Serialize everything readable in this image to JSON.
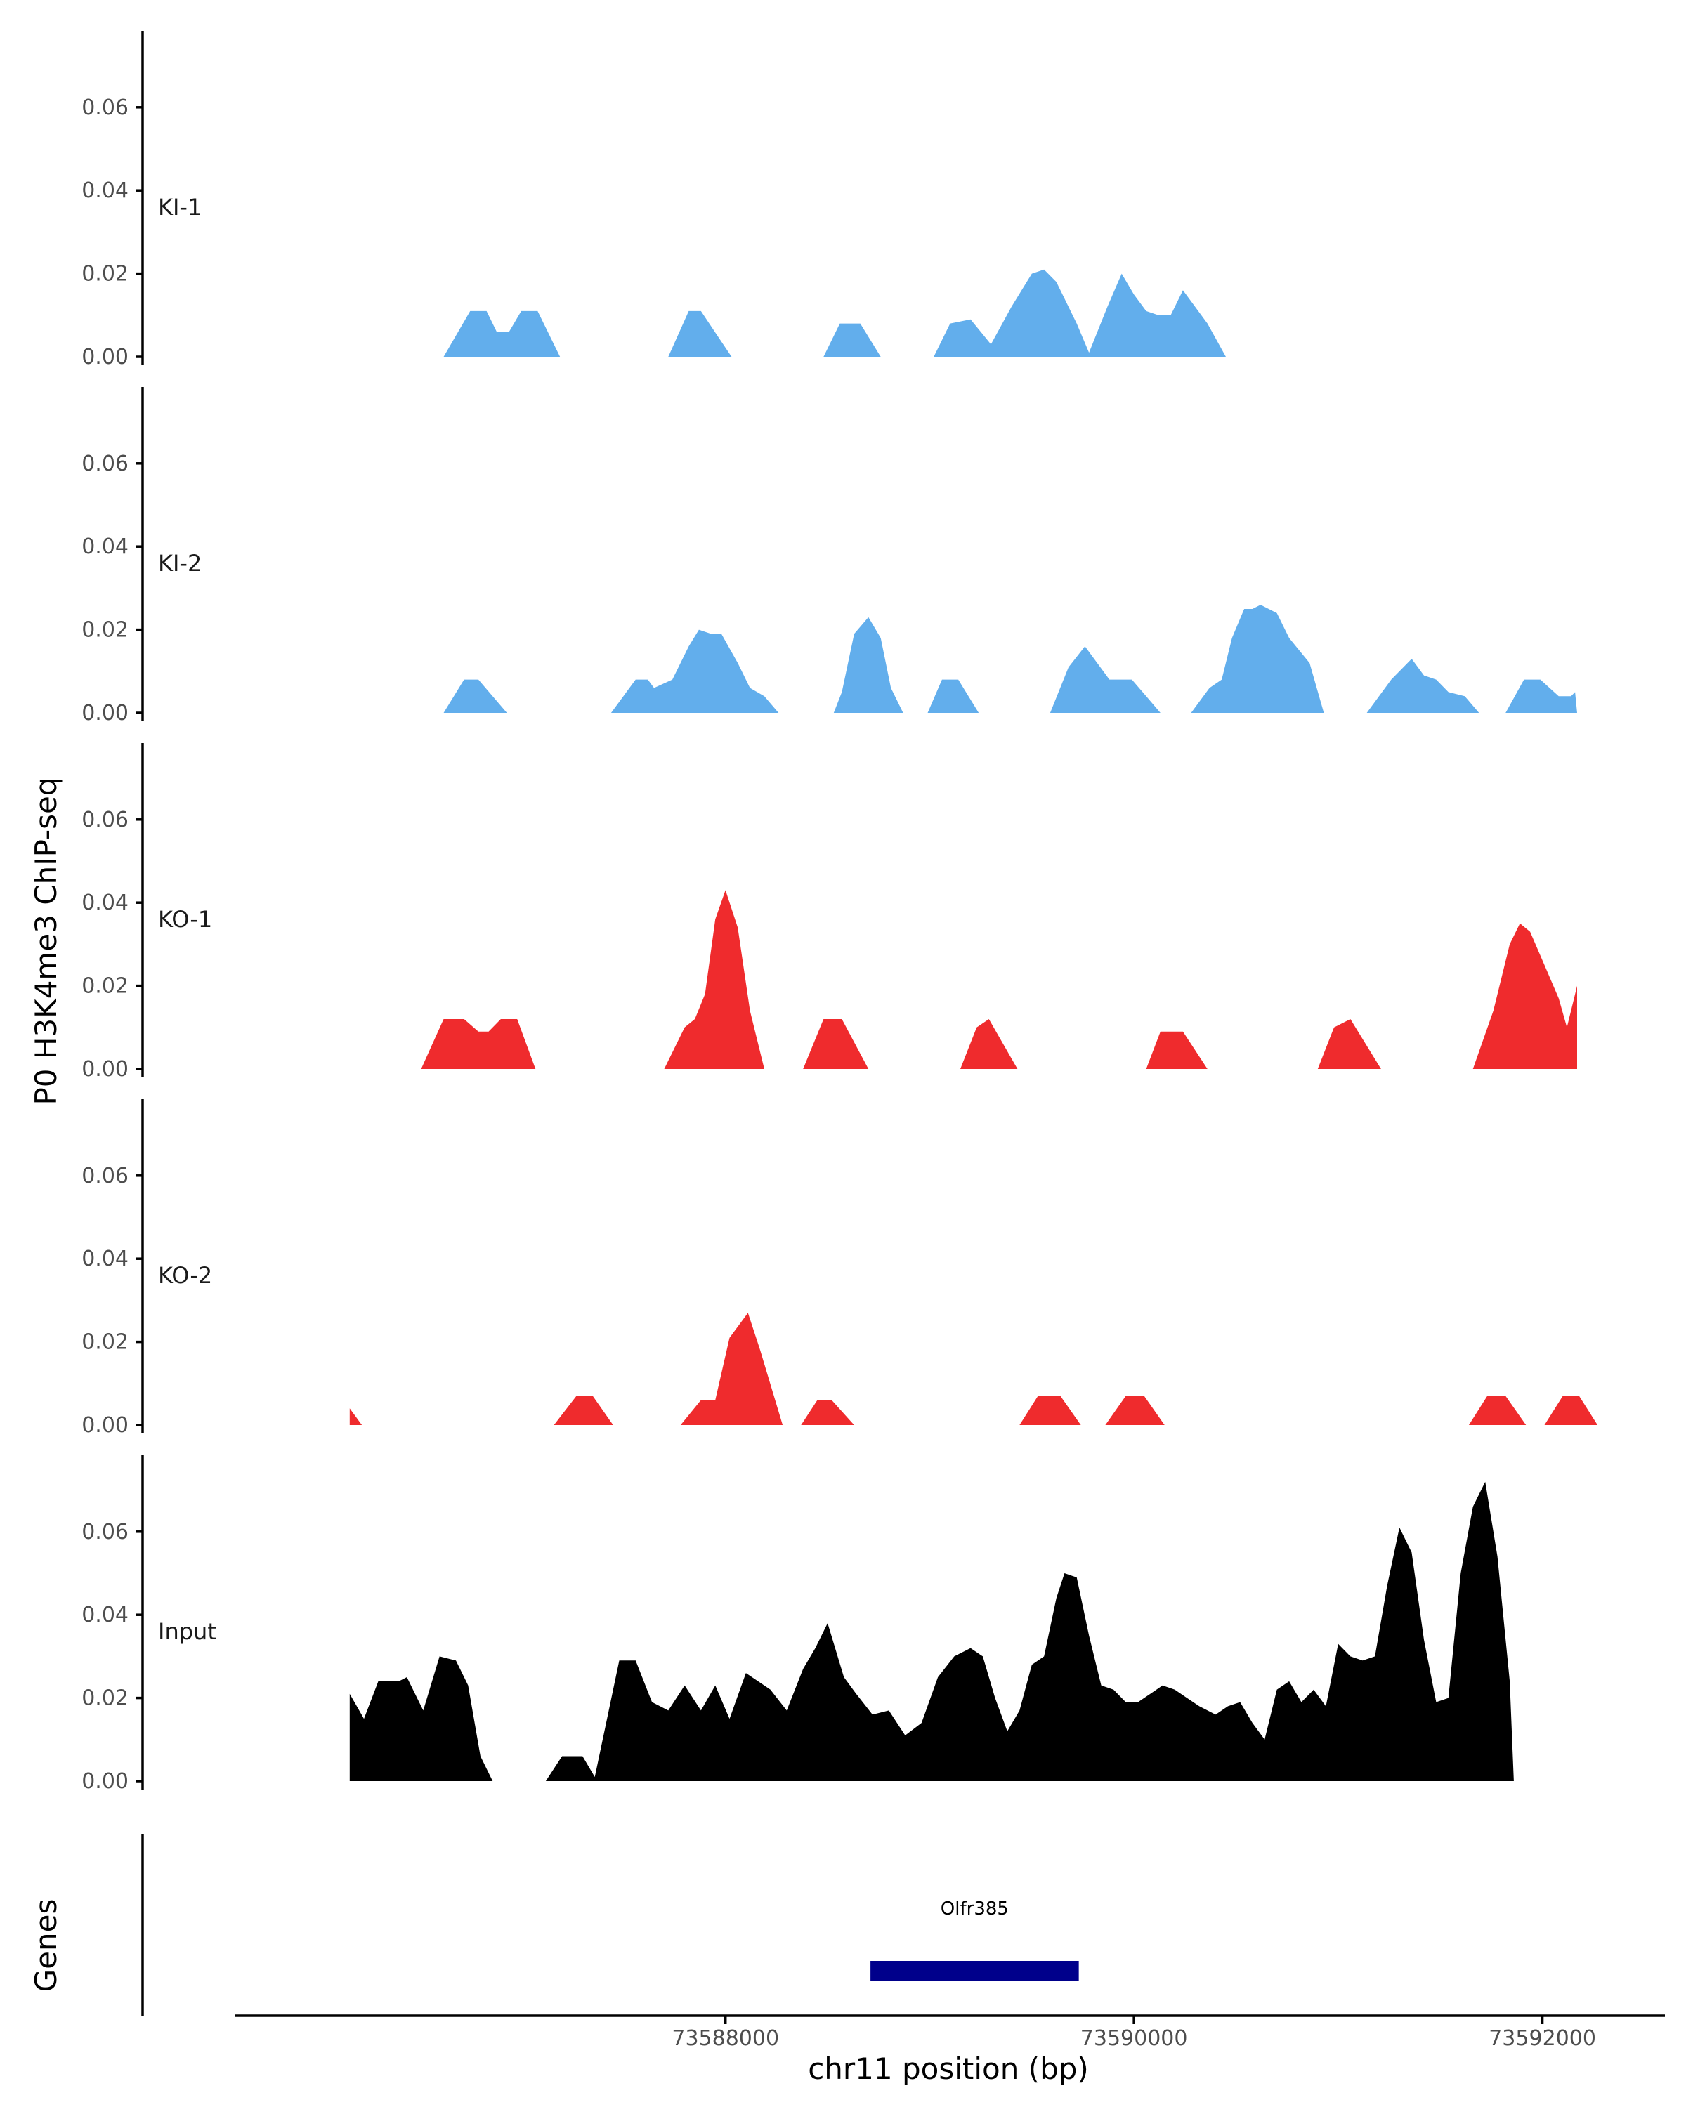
{
  "chart_data": {
    "type": "area",
    "ylabel": "P0 H3K4me3 ChIP-seq",
    "xlabel": "chr11 position (bp)",
    "genes_label": "Genes",
    "ylim": [
      0,
      0.075
    ],
    "xlim": [
      73585600,
      73592600
    ],
    "yticks": [
      "0.00",
      "0.02",
      "0.04",
      "0.06"
    ],
    "xticks": [
      {
        "value": 73588000,
        "label": "73588000"
      },
      {
        "value": 73590000,
        "label": "73590000"
      },
      {
        "value": 73592000,
        "label": "73592000"
      }
    ],
    "series": [
      {
        "name": "KI-1",
        "color": "#62aeec",
        "points": [
          [
            73586620,
            0
          ],
          [
            73586750,
            0.011
          ],
          [
            73586830,
            0.011
          ],
          [
            73586880,
            0.006
          ],
          [
            73586940,
            0.006
          ],
          [
            73587000,
            0.011
          ],
          [
            73587080,
            0.011
          ],
          [
            73587190,
            0
          ],
          [
            73587720,
            0
          ],
          [
            73587820,
            0.011
          ],
          [
            73587880,
            0.011
          ],
          [
            73588030,
            0
          ],
          [
            73588480,
            0
          ],
          [
            73588560,
            0.008
          ],
          [
            73588660,
            0.008
          ],
          [
            73588760,
            0
          ],
          [
            73589020,
            0
          ],
          [
            73589100,
            0.008
          ],
          [
            73589200,
            0.009
          ],
          [
            73589300,
            0.003
          ],
          [
            73589400,
            0.012
          ],
          [
            73589500,
            0.02
          ],
          [
            73589560,
            0.021
          ],
          [
            73589620,
            0.018
          ],
          [
            73589720,
            0.008
          ],
          [
            73589780,
            0.001
          ],
          [
            73589870,
            0.012
          ],
          [
            73589940,
            0.02
          ],
          [
            73590000,
            0.015
          ],
          [
            73590060,
            0.011
          ],
          [
            73590120,
            0.01
          ],
          [
            73590180,
            0.01
          ],
          [
            73590240,
            0.016
          ],
          [
            73590300,
            0.012
          ],
          [
            73590360,
            0.008
          ],
          [
            73590450,
            0
          ],
          [
            73590460,
            0
          ]
        ]
      },
      {
        "name": "KI-2",
        "color": "#62aeec",
        "points": [
          [
            73586620,
            0
          ],
          [
            73586720,
            0.008
          ],
          [
            73586790,
            0.008
          ],
          [
            73586930,
            0
          ],
          [
            73587440,
            0
          ],
          [
            73587560,
            0.008
          ],
          [
            73587620,
            0.008
          ],
          [
            73587650,
            0.006
          ],
          [
            73587740,
            0.008
          ],
          [
            73587820,
            0.016
          ],
          [
            73587870,
            0.02
          ],
          [
            73587930,
            0.019
          ],
          [
            73587980,
            0.019
          ],
          [
            73588060,
            0.012
          ],
          [
            73588120,
            0.006
          ],
          [
            73588190,
            0.004
          ],
          [
            73588260,
            0
          ],
          [
            73588530,
            0
          ],
          [
            73588570,
            0.005
          ],
          [
            73588630,
            0.019
          ],
          [
            73588700,
            0.023
          ],
          [
            73588760,
            0.018
          ],
          [
            73588810,
            0.006
          ],
          [
            73588870,
            0
          ],
          [
            73588990,
            0
          ],
          [
            73589060,
            0.008
          ],
          [
            73589140,
            0.008
          ],
          [
            73589240,
            0
          ],
          [
            73589590,
            0
          ],
          [
            73589680,
            0.011
          ],
          [
            73589760,
            0.016
          ],
          [
            73589880,
            0.008
          ],
          [
            73589990,
            0.008
          ],
          [
            73590060,
            0.004
          ],
          [
            73590130,
            0
          ],
          [
            73590280,
            0
          ],
          [
            73590370,
            0.006
          ],
          [
            73590430,
            0.008
          ],
          [
            73590480,
            0.018
          ],
          [
            73590540,
            0.025
          ],
          [
            73590580,
            0.025
          ],
          [
            73590620,
            0.026
          ],
          [
            73590700,
            0.024
          ],
          [
            73590760,
            0.018
          ],
          [
            73590860,
            0.012
          ],
          [
            73590930,
            0
          ],
          [
            73591140,
            0
          ],
          [
            73591260,
            0.008
          ],
          [
            73591360,
            0.013
          ],
          [
            73591420,
            0.009
          ],
          [
            73591480,
            0.008
          ],
          [
            73591540,
            0.005
          ],
          [
            73591620,
            0.004
          ],
          [
            73591690,
            0
          ],
          [
            73591820,
            0
          ],
          [
            73591910,
            0.008
          ],
          [
            73591990,
            0.008
          ],
          [
            73592080,
            0.004
          ],
          [
            73592140,
            0.004
          ],
          [
            73592160,
            0.005
          ],
          [
            73592170,
            0
          ]
        ]
      },
      {
        "name": "KO-1",
        "color": "#ef2b2d",
        "points": [
          [
            73586510,
            0
          ],
          [
            73586620,
            0.012
          ],
          [
            73586720,
            0.012
          ],
          [
            73586790,
            0.009
          ],
          [
            73586840,
            0.009
          ],
          [
            73586900,
            0.012
          ],
          [
            73586980,
            0.012
          ],
          [
            73587070,
            0
          ],
          [
            73587700,
            0
          ],
          [
            73587800,
            0.01
          ],
          [
            73587850,
            0.012
          ],
          [
            73587900,
            0.018
          ],
          [
            73587950,
            0.036
          ],
          [
            73588000,
            0.043
          ],
          [
            73588060,
            0.034
          ],
          [
            73588120,
            0.014
          ],
          [
            73588190,
            0
          ],
          [
            73588380,
            0
          ],
          [
            73588480,
            0.012
          ],
          [
            73588570,
            0.012
          ],
          [
            73588700,
            0
          ],
          [
            73589150,
            0
          ],
          [
            73589230,
            0.01
          ],
          [
            73589290,
            0.012
          ],
          [
            73589430,
            0
          ],
          [
            73590060,
            0
          ],
          [
            73590130,
            0.009
          ],
          [
            73590240,
            0.009
          ],
          [
            73590360,
            0
          ],
          [
            73590900,
            0
          ],
          [
            73590980,
            0.01
          ],
          [
            73591060,
            0.012
          ],
          [
            73591210,
            0
          ],
          [
            73591660,
            0
          ],
          [
            73591760,
            0.014
          ],
          [
            73591840,
            0.03
          ],
          [
            73591890,
            0.035
          ],
          [
            73591940,
            0.033
          ],
          [
            73592010,
            0.025
          ],
          [
            73592080,
            0.017
          ],
          [
            73592120,
            0.01
          ],
          [
            73592170,
            0.02
          ],
          [
            73592170,
            0
          ]
        ]
      },
      {
        "name": "KO-2",
        "color": "#ef2b2d",
        "points": [
          [
            73586160,
            0.004
          ],
          [
            73586220,
            0
          ],
          [
            73587160,
            0
          ],
          [
            73587270,
            0.007
          ],
          [
            73587350,
            0.007
          ],
          [
            73587450,
            0
          ],
          [
            73587780,
            0
          ],
          [
            73587880,
            0.006
          ],
          [
            73587950,
            0.006
          ],
          [
            73588020,
            0.021
          ],
          [
            73588110,
            0.027
          ],
          [
            73588170,
            0.018
          ],
          [
            73588280,
            0
          ],
          [
            73588370,
            0
          ],
          [
            73588450,
            0.006
          ],
          [
            73588520,
            0.006
          ],
          [
            73588630,
            0
          ],
          [
            73589440,
            0
          ],
          [
            73589530,
            0.007
          ],
          [
            73589640,
            0.007
          ],
          [
            73589740,
            0
          ],
          [
            73589860,
            0
          ],
          [
            73589960,
            0.007
          ],
          [
            73590050,
            0.007
          ],
          [
            73590150,
            0
          ],
          [
            73591640,
            0
          ],
          [
            73591730,
            0.007
          ],
          [
            73591820,
            0.007
          ],
          [
            73591920,
            0
          ],
          [
            73592010,
            0
          ],
          [
            73592100,
            0.007
          ],
          [
            73592180,
            0.007
          ],
          [
            73592270,
            0
          ]
        ]
      },
      {
        "name": "Input",
        "color": "#000000",
        "points": [
          [
            73586160,
            0
          ],
          [
            73586160,
            0.021
          ],
          [
            73586230,
            0.015
          ],
          [
            73586300,
            0.024
          ],
          [
            73586400,
            0.024
          ],
          [
            73586440,
            0.025
          ],
          [
            73586520,
            0.017
          ],
          [
            73586600,
            0.03
          ],
          [
            73586680,
            0.029
          ],
          [
            73586740,
            0.023
          ],
          [
            73586800,
            0.006
          ],
          [
            73586860,
            0
          ],
          [
            73587120,
            0
          ],
          [
            73587200,
            0.006
          ],
          [
            73587300,
            0.006
          ],
          [
            73587360,
            0.001
          ],
          [
            73587420,
            0.015
          ],
          [
            73587480,
            0.029
          ],
          [
            73587560,
            0.029
          ],
          [
            73587640,
            0.019
          ],
          [
            73587720,
            0.017
          ],
          [
            73587800,
            0.023
          ],
          [
            73587880,
            0.017
          ],
          [
            73587950,
            0.023
          ],
          [
            73588020,
            0.015
          ],
          [
            73588100,
            0.026
          ],
          [
            73588160,
            0.024
          ],
          [
            73588220,
            0.022
          ],
          [
            73588300,
            0.017
          ],
          [
            73588380,
            0.027
          ],
          [
            73588440,
            0.032
          ],
          [
            73588500,
            0.038
          ],
          [
            73588580,
            0.025
          ],
          [
            73588640,
            0.021
          ],
          [
            73588720,
            0.016
          ],
          [
            73588800,
            0.017
          ],
          [
            73588880,
            0.011
          ],
          [
            73588960,
            0.014
          ],
          [
            73589040,
            0.025
          ],
          [
            73589120,
            0.03
          ],
          [
            73589200,
            0.032
          ],
          [
            73589260,
            0.03
          ],
          [
            73589320,
            0.02
          ],
          [
            73589380,
            0.012
          ],
          [
            73589440,
            0.017
          ],
          [
            73589500,
            0.028
          ],
          [
            73589560,
            0.03
          ],
          [
            73589620,
            0.044
          ],
          [
            73589660,
            0.05
          ],
          [
            73589720,
            0.049
          ],
          [
            73589780,
            0.035
          ],
          [
            73589840,
            0.023
          ],
          [
            73589900,
            0.022
          ],
          [
            73589960,
            0.019
          ],
          [
            73590020,
            0.019
          ],
          [
            73590080,
            0.021
          ],
          [
            73590140,
            0.023
          ],
          [
            73590200,
            0.022
          ],
          [
            73590260,
            0.02
          ],
          [
            73590320,
            0.018
          ],
          [
            73590400,
            0.016
          ],
          [
            73590460,
            0.018
          ],
          [
            73590520,
            0.019
          ],
          [
            73590580,
            0.014
          ],
          [
            73590640,
            0.01
          ],
          [
            73590700,
            0.022
          ],
          [
            73590760,
            0.024
          ],
          [
            73590820,
            0.019
          ],
          [
            73590880,
            0.022
          ],
          [
            73590940,
            0.018
          ],
          [
            73591000,
            0.033
          ],
          [
            73591060,
            0.03
          ],
          [
            73591120,
            0.029
          ],
          [
            73591180,
            0.03
          ],
          [
            73591240,
            0.047
          ],
          [
            73591300,
            0.061
          ],
          [
            73591360,
            0.055
          ],
          [
            73591420,
            0.034
          ],
          [
            73591480,
            0.019
          ],
          [
            73591540,
            0.02
          ],
          [
            73591600,
            0.05
          ],
          [
            73591660,
            0.066
          ],
          [
            73591720,
            0.072
          ],
          [
            73591780,
            0.054
          ],
          [
            73591840,
            0.024
          ],
          [
            73591860,
            0
          ],
          [
            73591860,
            0
          ]
        ]
      }
    ],
    "gene": {
      "name": "Olfr385",
      "start": 73588710,
      "end": 73589730,
      "color": "#00008b"
    }
  }
}
